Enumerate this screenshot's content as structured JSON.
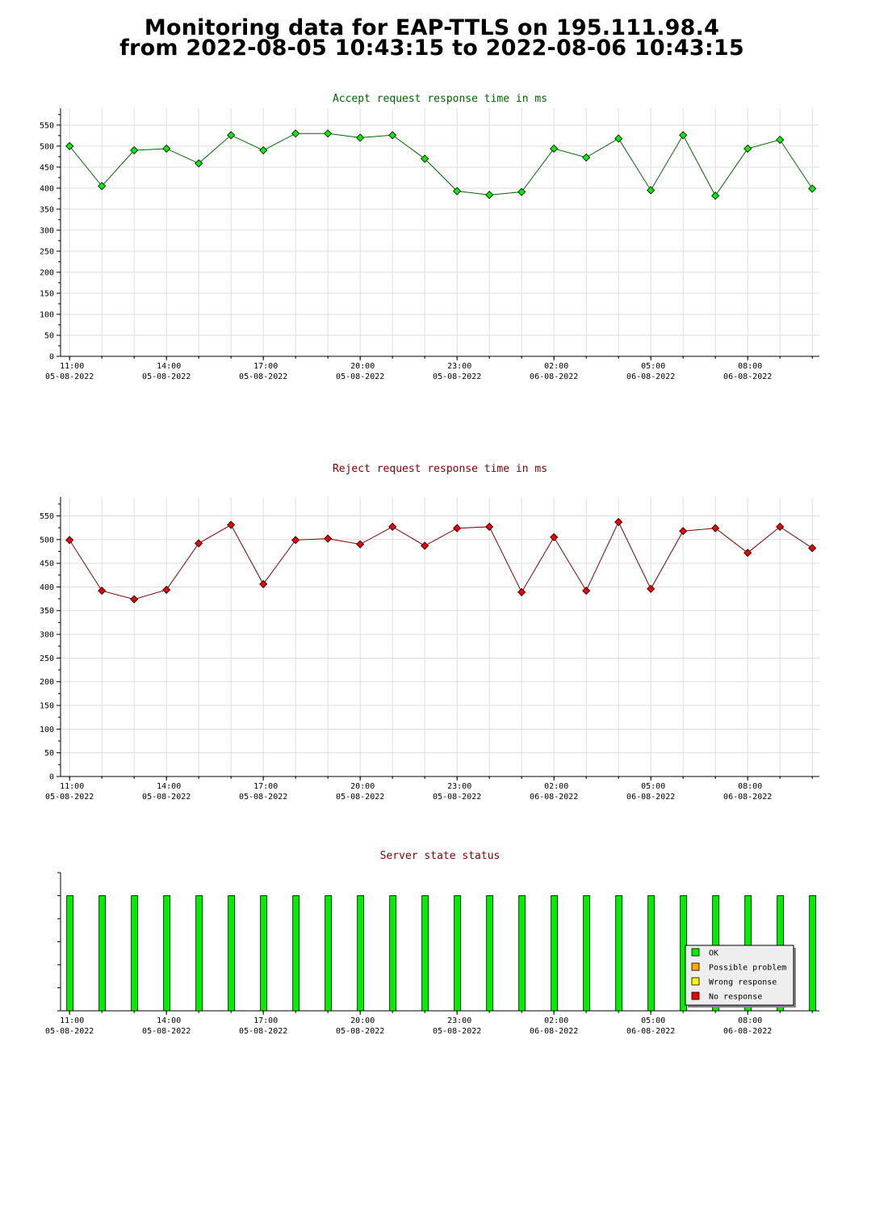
{
  "header": {
    "line1": "Monitoring data for EAP-TTLS on 195.111.98.4",
    "line2": "from 2022-08-05 10:43:15 to 2022-08-06 10:43:15"
  },
  "chart_data": [
    {
      "type": "line",
      "title": "Accept request response time in ms",
      "title_color": "#006400",
      "line_color": "#006400",
      "marker_color": "#00ee00",
      "ylim": [
        0,
        590
      ],
      "yticks": [
        0,
        50,
        100,
        150,
        200,
        250,
        300,
        350,
        400,
        450,
        500,
        550
      ],
      "x_tick_times": [
        "11:00",
        "14:00",
        "17:00",
        "20:00",
        "23:00",
        "02:00",
        "05:00",
        "08:00"
      ],
      "x_tick_dates": [
        "05-08-2022",
        "05-08-2022",
        "05-08-2022",
        "05-08-2022",
        "05-08-2022",
        "06-08-2022",
        "06-08-2022",
        "06-08-2022"
      ],
      "grid": true,
      "x": [
        "05-08 11:00",
        "05-08 12:00",
        "05-08 13:00",
        "05-08 14:00",
        "05-08 15:00",
        "05-08 16:00",
        "05-08 17:00",
        "05-08 18:00",
        "05-08 19:00",
        "05-08 20:00",
        "05-08 21:00",
        "05-08 22:00",
        "05-08 23:00",
        "06-08 00:00",
        "06-08 01:00",
        "06-08 02:00",
        "06-08 03:00",
        "06-08 04:00",
        "06-08 05:00",
        "06-08 06:00",
        "06-08 07:00",
        "06-08 08:00",
        "06-08 09:00",
        "06-08 10:00"
      ],
      "values": [
        500,
        405,
        490,
        494,
        459,
        526,
        490,
        530,
        530,
        520,
        526,
        470,
        393,
        384,
        391,
        494,
        473,
        518,
        395,
        526,
        382,
        494,
        515,
        399
      ]
    },
    {
      "type": "line",
      "title": "Reject request response time in ms",
      "title_color": "#800000",
      "line_color": "#800000",
      "marker_color": "#ee0000",
      "ylim": [
        0,
        590
      ],
      "yticks": [
        0,
        50,
        100,
        150,
        200,
        250,
        300,
        350,
        400,
        450,
        500,
        550
      ],
      "x_tick_times": [
        "11:00",
        "14:00",
        "17:00",
        "20:00",
        "23:00",
        "02:00",
        "05:00",
        "08:00"
      ],
      "x_tick_dates": [
        "05-08-2022",
        "05-08-2022",
        "05-08-2022",
        "05-08-2022",
        "05-08-2022",
        "06-08-2022",
        "06-08-2022",
        "06-08-2022"
      ],
      "grid": true,
      "x": [
        "05-08 11:00",
        "05-08 12:00",
        "05-08 13:00",
        "05-08 14:00",
        "05-08 15:00",
        "05-08 16:00",
        "05-08 17:00",
        "05-08 18:00",
        "05-08 19:00",
        "05-08 20:00",
        "05-08 21:00",
        "05-08 22:00",
        "05-08 23:00",
        "06-08 00:00",
        "06-08 01:00",
        "06-08 02:00",
        "06-08 03:00",
        "06-08 04:00",
        "06-08 05:00",
        "06-08 06:00",
        "06-08 07:00",
        "06-08 08:00",
        "06-08 09:00",
        "06-08 10:00"
      ],
      "values": [
        499,
        392,
        374,
        394,
        492,
        531,
        406,
        499,
        502,
        490,
        527,
        487,
        524,
        527,
        389,
        505,
        392,
        537,
        396,
        518,
        524,
        472,
        527,
        482
      ]
    },
    {
      "type": "bar",
      "title": "Server state status",
      "title_color": "#800000",
      "x_tick_times": [
        "11:00",
        "14:00",
        "17:00",
        "20:00",
        "23:00",
        "02:00",
        "05:00",
        "08:00"
      ],
      "x_tick_dates": [
        "05-08-2022",
        "05-08-2022",
        "05-08-2022",
        "05-08-2022",
        "05-08-2022",
        "06-08-2022",
        "06-08-2022",
        "06-08-2022"
      ],
      "x": [
        "05-08 11:00",
        "05-08 12:00",
        "05-08 13:00",
        "05-08 14:00",
        "05-08 15:00",
        "05-08 16:00",
        "05-08 17:00",
        "05-08 18:00",
        "05-08 19:00",
        "05-08 20:00",
        "05-08 21:00",
        "05-08 22:00",
        "05-08 23:00",
        "06-08 00:00",
        "06-08 01:00",
        "06-08 02:00",
        "06-08 03:00",
        "06-08 04:00",
        "06-08 05:00",
        "06-08 06:00",
        "06-08 07:00",
        "06-08 08:00",
        "06-08 09:00",
        "06-08 10:00"
      ],
      "states": [
        "OK",
        "OK",
        "OK",
        "OK",
        "OK",
        "OK",
        "OK",
        "OK",
        "OK",
        "OK",
        "OK",
        "OK",
        "OK",
        "OK",
        "OK",
        "OK",
        "OK",
        "OK",
        "OK",
        "OK",
        "OK",
        "OK",
        "OK",
        "OK"
      ],
      "legend_position": "bottom-right",
      "legend": [
        {
          "label": "OK",
          "color": "#00ee00"
        },
        {
          "label": "Possible problem",
          "color": "#ffa500"
        },
        {
          "label": "Wrong response",
          "color": "#ffff00"
        },
        {
          "label": "No response",
          "color": "#ee0000"
        }
      ]
    }
  ]
}
